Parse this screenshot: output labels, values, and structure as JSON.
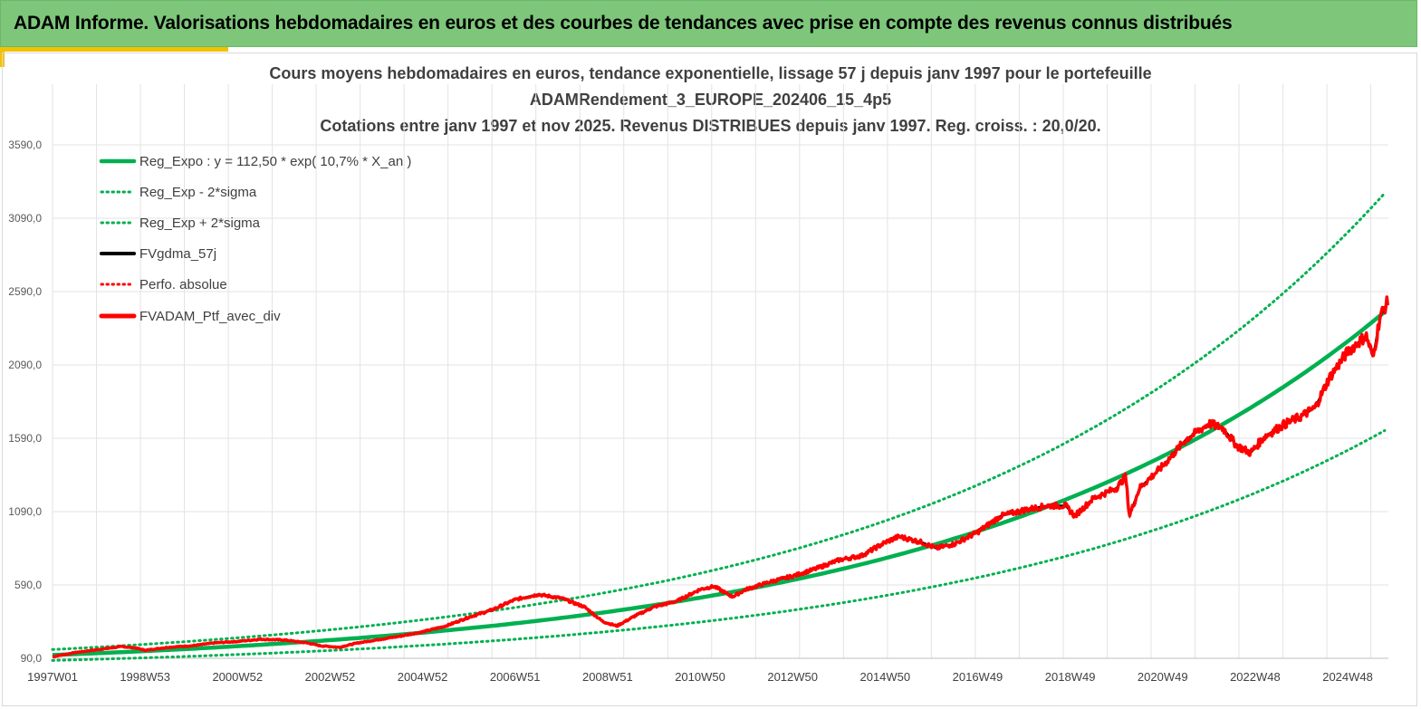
{
  "header": {
    "title": "ADAM Informe. Valorisations hebdomadaires en euros et des courbes de tendances avec prise en compte des revenus connus distribués"
  },
  "chart_data": {
    "type": "line",
    "title_lines": [
      "Cours moyens hebdomadaires  en euros, tendance exponentielle, lissage 57 j depuis janv 1997 pour le portefeuille",
      "ADAMRendement_3_EUROPE_202406_15_4p5",
      "Cotations  entre janv 1997 et nov 2025. Revenus DISTRIBUES depuis janv 1997. Reg. croiss. : 20,0/20."
    ],
    "xlabel": "",
    "ylabel": "",
    "x_tick_labels": [
      "1997W01",
      "1998W53",
      "2000W52",
      "2002W52",
      "2004W52",
      "2006W51",
      "2008W51",
      "2010W50",
      "2012W50",
      "2014W50",
      "2016W49",
      "2018W49",
      "2020W49",
      "2022W48",
      "2024W48"
    ],
    "x_tick_years": [
      1997.0,
      1999.0,
      2001.0,
      2003.0,
      2005.0,
      2007.0,
      2009.0,
      2011.0,
      2013.0,
      2015.0,
      2017.0,
      2019.0,
      2021.0,
      2023.0,
      2025.0
    ],
    "x_range": [
      1997.0,
      2025.88
    ],
    "y_ticks": [
      90,
      590,
      1090,
      1590,
      2090,
      2590,
      3090,
      3590
    ],
    "y_tick_labels": [
      "90,0",
      "590,0",
      "1090,0",
      "1590,0",
      "2090,0",
      "2590,0",
      "3090,0",
      "3590,0"
    ],
    "ylim": [
      90,
      3590
    ],
    "grid": true,
    "legend_position": "top-left",
    "regression": {
      "a": 112.5,
      "rate": 0.107,
      "sigma_factor": 0.33
    },
    "series": [
      {
        "name": "Reg_Expo : y = 112,50 * exp( 10,7% *  X_an )",
        "color": "#00b050",
        "style": "solid"
      },
      {
        "name": "Reg_Exp - 2*sigma",
        "color": "#00b050",
        "style": "dotted"
      },
      {
        "name": "Reg_Exp + 2*sigma",
        "color": "#00b050",
        "style": "dotted"
      },
      {
        "name": "FVgdma_57j",
        "color": "#000000",
        "style": "solid"
      },
      {
        "name": "Perfo. absolue",
        "color": "#ff0000",
        "style": "dotted"
      },
      {
        "name": "FVADAM_Ptf_avec_div",
        "color": "#ff0000",
        "style": "solid-thick"
      }
    ],
    "portfolio_points": [
      [
        1997.0,
        100
      ],
      [
        1997.5,
        130
      ],
      [
        1998.0,
        150
      ],
      [
        1998.5,
        170
      ],
      [
        1998.8,
        160
      ],
      [
        1999.0,
        145
      ],
      [
        1999.5,
        165
      ],
      [
        2000.0,
        175
      ],
      [
        2000.5,
        195
      ],
      [
        2001.0,
        205
      ],
      [
        2001.5,
        220
      ],
      [
        2002.0,
        215
      ],
      [
        2002.5,
        195
      ],
      [
        2002.8,
        175
      ],
      [
        2003.2,
        165
      ],
      [
        2003.6,
        195
      ],
      [
        2004.0,
        215
      ],
      [
        2004.5,
        240
      ],
      [
        2005.0,
        270
      ],
      [
        2005.5,
        310
      ],
      [
        2006.0,
        370
      ],
      [
        2006.5,
        420
      ],
      [
        2007.0,
        490
      ],
      [
        2007.5,
        525
      ],
      [
        2008.0,
        500
      ],
      [
        2008.5,
        440
      ],
      [
        2008.9,
        340
      ],
      [
        2009.2,
        310
      ],
      [
        2009.6,
        380
      ],
      [
        2010.0,
        440
      ],
      [
        2010.5,
        480
      ],
      [
        2011.0,
        560
      ],
      [
        2011.3,
        580
      ],
      [
        2011.7,
        510
      ],
      [
        2012.0,
        560
      ],
      [
        2012.5,
        610
      ],
      [
        2013.0,
        650
      ],
      [
        2013.5,
        700
      ],
      [
        2014.0,
        760
      ],
      [
        2014.5,
        790
      ],
      [
        2015.0,
        880
      ],
      [
        2015.3,
        920
      ],
      [
        2015.8,
        880
      ],
      [
        2016.1,
        840
      ],
      [
        2016.5,
        870
      ],
      [
        2017.0,
        950
      ],
      [
        2017.5,
        1060
      ],
      [
        2018.0,
        1100
      ],
      [
        2018.5,
        1130
      ],
      [
        2018.9,
        1130
      ],
      [
        2019.1,
        1060
      ],
      [
        2019.5,
        1180
      ],
      [
        2020.0,
        1250
      ],
      [
        2020.2,
        1330
      ],
      [
        2020.28,
        1060
      ],
      [
        2020.5,
        1250
      ],
      [
        2021.0,
        1400
      ],
      [
        2021.5,
        1580
      ],
      [
        2022.0,
        1690
      ],
      [
        2022.3,
        1660
      ],
      [
        2022.6,
        1540
      ],
      [
        2022.9,
        1490
      ],
      [
        2023.2,
        1600
      ],
      [
        2023.6,
        1680
      ],
      [
        2024.0,
        1740
      ],
      [
        2024.3,
        1800
      ],
      [
        2024.6,
        2000
      ],
      [
        2025.0,
        2180
      ],
      [
        2025.4,
        2290
      ],
      [
        2025.55,
        2140
      ],
      [
        2025.7,
        2420
      ],
      [
        2025.88,
        2530
      ]
    ]
  }
}
